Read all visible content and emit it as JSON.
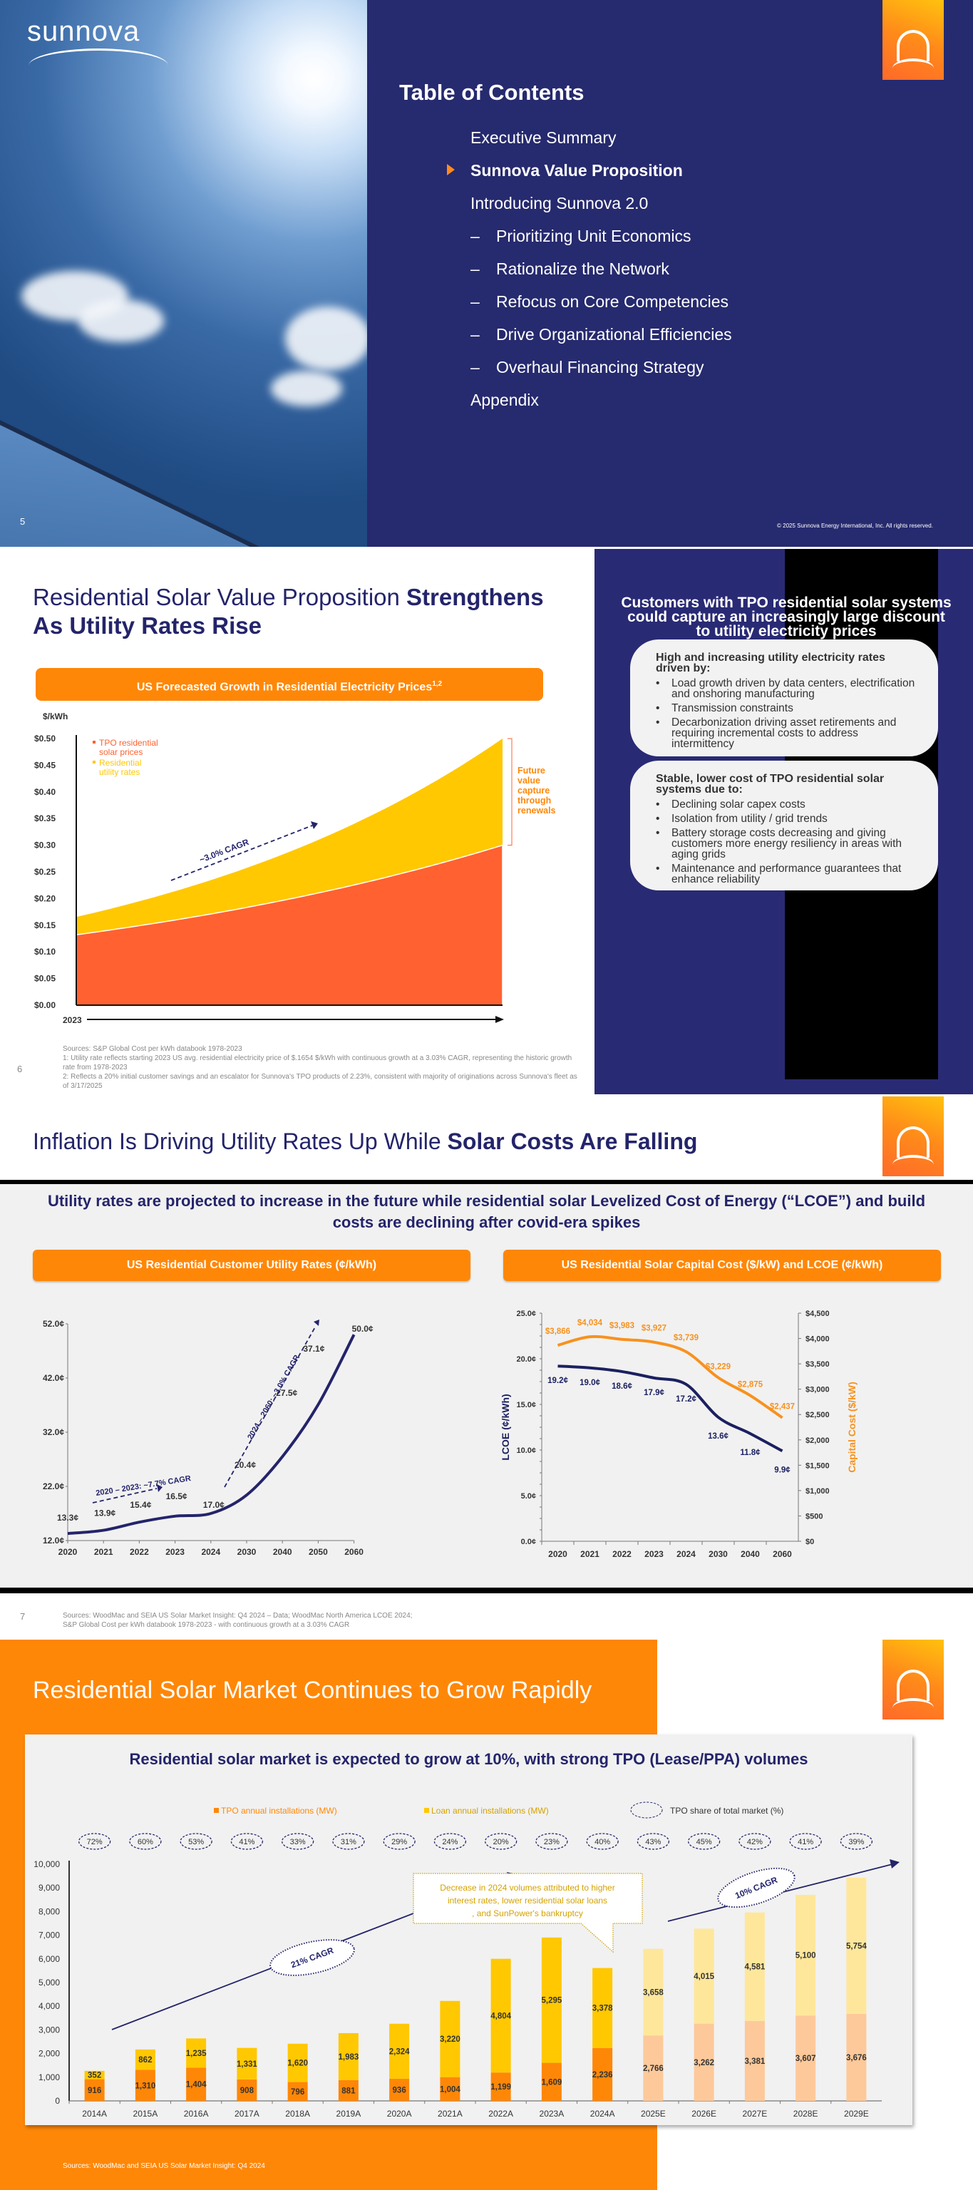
{
  "slide5": {
    "logo": "sunnova",
    "toc_title": "Table of Contents",
    "toc_items": [
      {
        "label": "Executive Summary",
        "sub": false,
        "active": false
      },
      {
        "label": "Sunnova Value Proposition",
        "sub": false,
        "active": true
      },
      {
        "label": "Introducing Sunnova 2.0",
        "sub": false,
        "active": false
      },
      {
        "label": "Prioritizing Unit Economics",
        "sub": true,
        "active": false
      },
      {
        "label": "Rationalize the Network",
        "sub": true,
        "active": false
      },
      {
        "label": "Refocus on Core Competencies",
        "sub": true,
        "active": false
      },
      {
        "label": "Drive Organizational Efficiencies",
        "sub": true,
        "active": false
      },
      {
        "label": "Overhaul Financing Strategy",
        "sub": true,
        "active": false
      },
      {
        "label": "Appendix",
        "sub": false,
        "active": false
      }
    ],
    "dash": "–",
    "page_number": "5",
    "copyright": "© 2025 Sunnova Energy International, Inc. All rights reserved."
  },
  "slide6": {
    "title_regular": "Residential Solar Value Proposition ",
    "title_bold": "Strengthens As Utility Rates Rise",
    "chart_header": "US Forecasted Growth in Residential Electricity Prices",
    "chart_header_sup": "1,2",
    "right_title": "Customers with TPO residential solar systems could capture an increasingly large discount to utility electricity prices",
    "box1": {
      "heading": "High and increasing utility electricity rates driven by:",
      "bullets": [
        "Load growth driven by data centers, electrification and onshoring manufacturing",
        "Transmission constraints",
        "Decarbonization driving asset retirements and requiring incremental costs to address intermittency"
      ]
    },
    "box2": {
      "heading": "Stable, lower cost of TPO residential solar systems due to:",
      "bullets": [
        "Declining solar capex costs",
        "Isolation from utility / grid trends",
        "Battery storage costs decreasing and giving customers more energy resiliency in areas with aging grids",
        "Maintenance and performance guarantees that enhance reliability"
      ]
    },
    "sources": [
      "Sources: S&P Global Cost per kWh databook 1978-2023",
      "1: Utility rate reflects starting 2023 US avg. residential electricity price of $.1654 $/kWh with continuous growth at a 3.03% CAGR, representing the historic growth rate from 1978-2023",
      "2: Reflects a 20% initial customer savings and an escalator for Sunnova's TPO products of 2.23%, consistent with majority of originations across Sunnova's fleet as of 3/17/2025"
    ],
    "page_number": "6"
  },
  "slide7": {
    "title_regular": "Inflation Is Driving Utility Rates Up While ",
    "title_bold": "Solar Costs Are Falling",
    "subtitle": "Utility rates are projected to increase in the future while residential solar Levelized Cost of Energy (“LCOE”) and build costs are declining after covid-era spikes",
    "left_header": "US Residential Customer Utility Rates (¢/kWh)",
    "right_header": "US Residential Solar Capital Cost ($/kW) and LCOE (¢/kWh)",
    "sources": [
      "Sources: WoodMac and SEIA US Solar Market Insight: Q4 2024 – Data; WoodMac North America LCOE 2024;",
      "S&P Global Cost per kWh databook 1978-2023 - with continuous growth at a 3.03% CAGR"
    ],
    "page_number": "7"
  },
  "slide8": {
    "title": "Residential Solar Market Continues to Grow Rapidly",
    "subtitle": "Residential solar market is expected to grow at 10%, with strong TPO (Lease/PPA) volumes",
    "sources": "Sources: WoodMac and SEIA US Solar Market Insight: Q4 2024"
  },
  "colors": {
    "navy": "#24246b",
    "orange": "#ff8707",
    "tpo_red": "#ff6130",
    "utility_yellow": "#ffc800",
    "capital_orange": "#f7921e",
    "lcoe_navy": "#1b2060"
  },
  "chart_data": [
    {
      "id": "electricity-prices",
      "type": "area",
      "title": "US Forecasted Growth in Residential Electricity Prices",
      "ylabel": "$/kWh",
      "xlabel": "2023",
      "ylim": [
        0,
        0.5
      ],
      "yticks": [
        "$0.00",
        "$0.05",
        "$0.10",
        "$0.15",
        "$0.20",
        "$0.25",
        "$0.30",
        "$0.35",
        "$0.40",
        "$0.45",
        "$0.50"
      ],
      "series": [
        {
          "name": "TPO residential solar prices",
          "color": "#ff6130",
          "start": 0.132,
          "end": 0.3
        },
        {
          "name": "Residential utility rates",
          "color": "#ffc800",
          "start": 0.1654,
          "end": 0.5
        }
      ],
      "annotations": [
        "~3.0% CAGR",
        "Future value capture through renewals"
      ],
      "legend": "top-left"
    },
    {
      "id": "utility-rates",
      "type": "line",
      "title": "US Residential Customer Utility Rates (¢/kWh)",
      "categories": [
        "2020",
        "2021",
        "2022",
        "2023",
        "2024",
        "2030",
        "2040",
        "2050",
        "2060"
      ],
      "values": [
        13.3,
        13.9,
        15.4,
        16.5,
        17.0,
        20.4,
        27.5,
        37.1,
        50.0
      ],
      "labels": [
        "13.3¢",
        "13.9¢",
        "15.4¢",
        "16.5¢",
        "17.0¢",
        "20.4¢",
        "27.5¢",
        "37.1¢",
        "50.0¢"
      ],
      "ylim": [
        12,
        52
      ],
      "yticks": [
        "12.0¢",
        "22.0¢",
        "32.0¢",
        "42.0¢",
        "52.0¢"
      ],
      "annotations": [
        "2020 – 2023: ~7.7% CAGR",
        "2024 – 2060: ~3.0% CAGR"
      ]
    },
    {
      "id": "capital-cost-lcoe",
      "type": "line",
      "title": "US Residential Solar Capital Cost ($/kW) and LCOE (¢/kWh)",
      "categories": [
        "2020",
        "2021",
        "2022",
        "2023",
        "2024",
        "2030",
        "2040",
        "2060"
      ],
      "series": [
        {
          "name": "LCOE (¢/kWh)",
          "axis": "left",
          "values": [
            19.2,
            19.0,
            18.6,
            17.9,
            17.2,
            13.6,
            11.8,
            9.9
          ],
          "labels": [
            "19.2¢",
            "19.0¢",
            "18.6¢",
            "17.9¢",
            "17.2¢",
            "13.6¢",
            "11.8¢",
            "9.9¢"
          ]
        },
        {
          "name": "Capital Cost ($/kW)",
          "axis": "right",
          "values": [
            3866,
            4034,
            3983,
            3927,
            3739,
            3229,
            2875,
            2437
          ],
          "labels": [
            "$3,866",
            "$4,034",
            "$3,983",
            "$3,927",
            "$3,739",
            "$3,229",
            "$2,875",
            "$2,437"
          ]
        }
      ],
      "ylabel_left": "LCOE (¢/kWh)",
      "ylabel_right": "Capital Cost ($/kW)",
      "ylim_left": [
        0,
        25
      ],
      "ylim_right": [
        0,
        4500
      ],
      "yticks_left": [
        "0.0¢",
        "5.0¢",
        "10.0¢",
        "15.0¢",
        "20.0¢",
        "25.0¢"
      ],
      "yticks_right": [
        "$0",
        "$500",
        "$1,000",
        "$1,500",
        "$2,000",
        "$2,500",
        "$3,000",
        "$3,500",
        "$4,000",
        "$4,500"
      ]
    },
    {
      "id": "market-installs",
      "type": "bar",
      "stacked": true,
      "title": "Residential solar market is expected to grow at 10%, with strong TPO (Lease/PPA) volumes",
      "categories": [
        "2014A",
        "2015A",
        "2016A",
        "2017A",
        "2018A",
        "2019A",
        "2020A",
        "2021A",
        "2022A",
        "2023A",
        "2024A",
        "2025E",
        "2026E",
        "2027E",
        "2028E",
        "2029E"
      ],
      "series": [
        {
          "name": "TPO annual installations (MW)",
          "values": [
            916,
            1310,
            1404,
            908,
            796,
            881,
            936,
            1004,
            1199,
            1609,
            2236,
            2766,
            3262,
            3381,
            3607,
            3676
          ]
        },
        {
          "name": "Loan annual installations (MW)",
          "values": [
            352,
            862,
            1235,
            1331,
            1620,
            1983,
            2324,
            3220,
            4804,
            5295,
            3378,
            3658,
            4015,
            4581,
            5100,
            5754
          ]
        }
      ],
      "tpo_share": [
        "72%",
        "60%",
        "53%",
        "41%",
        "33%",
        "31%",
        "29%",
        "24%",
        "20%",
        "23%",
        "40%",
        "43%",
        "45%",
        "42%",
        "41%",
        "39%"
      ],
      "tpo_share_legend": "TPO share of total market (%)",
      "ylim": [
        0,
        10000
      ],
      "yticks": [
        "0",
        "1,000",
        "2,000",
        "3,000",
        "4,000",
        "5,000",
        "6,000",
        "7,000",
        "8,000",
        "9,000",
        "10,000"
      ],
      "annotations": [
        "21% CAGR",
        "10% CAGR",
        "Decrease in 2024 volumes attributed to higher interest rates, lower residential solar loans, and SunPower's bankruptcy"
      ],
      "legend": "top-center"
    }
  ]
}
